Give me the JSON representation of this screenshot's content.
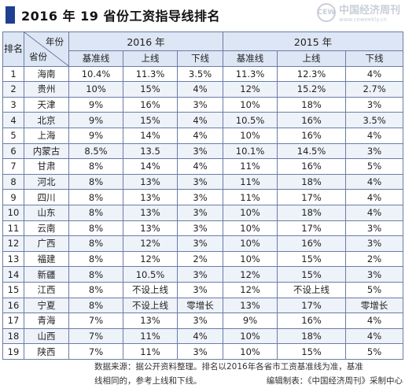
{
  "title": "2016 年 19 省份工资指导线排名",
  "logo": {
    "mark": "CEW",
    "name": "中国经济周刊",
    "url": "www.ceweekly.cn"
  },
  "header": {
    "rank": "排名",
    "year_label": "年份",
    "province_label": "省份",
    "year_2016": "2016 年",
    "year_2015": "2015 年",
    "sub": [
      "基准线",
      "上线",
      "下线",
      "基准线",
      "上线",
      "下线"
    ]
  },
  "rows": [
    [
      "1",
      "海南",
      "10.4%",
      "11.3%",
      "3.5%",
      "11.3%",
      "12.3%",
      "4%"
    ],
    [
      "2",
      "贵州",
      "10%",
      "15%",
      "4%",
      "12%",
      "15.2%",
      "2.7%"
    ],
    [
      "3",
      "天津",
      "9%",
      "16%",
      "3%",
      "10%",
      "18%",
      "3%"
    ],
    [
      "4",
      "北京",
      "9%",
      "15%",
      "4%",
      "10.5%",
      "16%",
      "3.5%"
    ],
    [
      "5",
      "上海",
      "9%",
      "14%",
      "4%",
      "10%",
      "16%",
      "4%"
    ],
    [
      "6",
      "内蒙古",
      "8.5%",
      "13.5",
      "3%",
      "10.1%",
      "14.5%",
      "3%"
    ],
    [
      "7",
      "甘肃",
      "8%",
      "14%",
      "4%",
      "11%",
      "16%",
      "5%"
    ],
    [
      "8",
      "河北",
      "8%",
      "13%",
      "3%",
      "11%",
      "18%",
      "4%"
    ],
    [
      "9",
      "四川",
      "8%",
      "13%",
      "3%",
      "11%",
      "17%",
      "4%"
    ],
    [
      "10",
      "山东",
      "8%",
      "13%",
      "3%",
      "10%",
      "18%",
      "4%"
    ],
    [
      "11",
      "云南",
      "8%",
      "13%",
      "3%",
      "10%",
      "17%",
      "3%"
    ],
    [
      "12",
      "广西",
      "8%",
      "12%",
      "3%",
      "10%",
      "16%",
      "3%"
    ],
    [
      "13",
      "福建",
      "8%",
      "12%",
      "2%",
      "10%",
      "15%",
      "2%"
    ],
    [
      "14",
      "新疆",
      "8%",
      "10.5%",
      "3%",
      "12%",
      "15%",
      "3%"
    ],
    [
      "15",
      "江西",
      "8%",
      "不设上线",
      "3%",
      "12%",
      "不设上线",
      "5%"
    ],
    [
      "16",
      "宁夏",
      "8%",
      "不设上线",
      "零增长",
      "13%",
      "17%",
      "零增长"
    ],
    [
      "17",
      "青海",
      "7%",
      "13%",
      "3%",
      "9%",
      "16%",
      "4%"
    ],
    [
      "18",
      "山西",
      "7%",
      "11%",
      "4%",
      "10%",
      "18%",
      "4%"
    ],
    [
      "19",
      "陕西",
      "7%",
      "11%",
      "3%",
      "10%",
      "15%",
      "5%"
    ]
  ],
  "footer": {
    "line1": "数据来源：据公开资料整理。排名以2016年各省市工资基准线为准，基准",
    "line2": "线相同的，参考上线和下线。",
    "credit": "编辑制表：《中国经济周刊》采制中心"
  }
}
